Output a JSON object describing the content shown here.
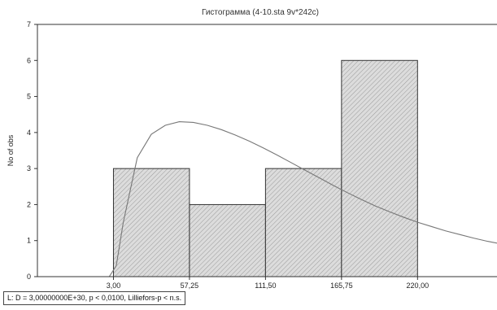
{
  "chart_data": {
    "type": "bar",
    "title": "Гистограмма (4-10.sta 9v*242c)",
    "xlabel": "",
    "ylabel": "No of obs",
    "x_ticks": [
      "3,00",
      "57,25",
      "111,50",
      "165,75",
      "220,00"
    ],
    "x_tick_values": [
      3.0,
      57.25,
      111.5,
      165.75,
      220.0
    ],
    "bins": [
      {
        "from": 3.0,
        "to": 57.25,
        "count": 3
      },
      {
        "from": 57.25,
        "to": 111.5,
        "count": 2
      },
      {
        "from": 111.5,
        "to": 165.75,
        "count": 3
      },
      {
        "from": 165.75,
        "to": 220.0,
        "count": 6
      }
    ],
    "y_ticks": [
      "0",
      "1",
      "2",
      "3",
      "4",
      "5",
      "6",
      "7"
    ],
    "xlim": [
      -51.25,
      276.7
    ],
    "ylim": [
      0,
      7
    ],
    "fitted_curve": {
      "x": [
        0,
        5,
        10,
        20,
        30,
        40,
        50,
        60,
        70,
        80,
        90,
        100,
        110,
        120,
        130,
        140,
        150,
        160,
        170,
        180,
        190,
        200,
        210,
        220,
        230,
        240,
        250,
        260,
        270,
        276.7
      ],
      "y": [
        0.0,
        0.3,
        1.5,
        3.3,
        3.95,
        4.2,
        4.3,
        4.28,
        4.2,
        4.08,
        3.93,
        3.76,
        3.57,
        3.37,
        3.16,
        2.95,
        2.74,
        2.53,
        2.33,
        2.14,
        1.96,
        1.8,
        1.65,
        1.51,
        1.39,
        1.27,
        1.17,
        1.07,
        0.98,
        0.93
      ]
    },
    "grid": false,
    "legend": "none"
  },
  "stats_text": "L:  D = 3,00000000E+30, p < 0,0100, Lilliefors-p < n.s.",
  "colors": {
    "bar_fill": "#dcdcdc",
    "bar_stroke": "#333333",
    "hatch": "#9a9a9a",
    "curve": "#777777",
    "axis": "#333333"
  }
}
